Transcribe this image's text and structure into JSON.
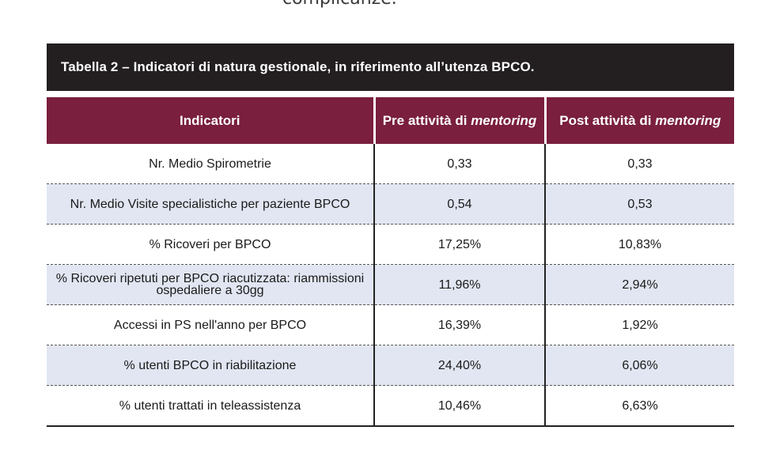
{
  "top_text": "complicanze.",
  "table": {
    "caption": "Tabella 2 – Indicatori di natura gestionale, in riferimento all’utenza BPCO.",
    "headers": {
      "indicator": "Indicatori",
      "pre_prefix": "Pre attività di ",
      "pre_emph": "mentoring",
      "post_prefix": "Post attività di ",
      "post_emph": "mentoring"
    },
    "rows": [
      {
        "indicator": "Nr. Medio Spirometrie",
        "pre": "0,33",
        "post": "0,33"
      },
      {
        "indicator": "Nr. Medio Visite specialistiche per paziente BPCO",
        "pre": "0,54",
        "post": "0,53"
      },
      {
        "indicator": "% Ricoveri per BPCO",
        "pre": "17,25%",
        "post": "10,83%"
      },
      {
        "indicator": "% Ricoveri ripetuti per BPCO riacutizzata: riammissioni ospedaliere a 30gg",
        "pre": "11,96%",
        "post": "2,94%"
      },
      {
        "indicator": "Accessi in PS nell'anno per BPCO",
        "pre": "16,39%",
        "post": "1,92%"
      },
      {
        "indicator": "% utenti BPCO in riabilitazione",
        "pre": "24,40%",
        "post": "6,06%"
      },
      {
        "indicator": "% utenti trattati in teleassistenza",
        "pre": "10,46%",
        "post": "6,63%"
      }
    ],
    "colors": {
      "caption_bg": "#231f20",
      "header_bg": "#7a1f3d",
      "stripe_bg": "#e1e6f2"
    }
  }
}
